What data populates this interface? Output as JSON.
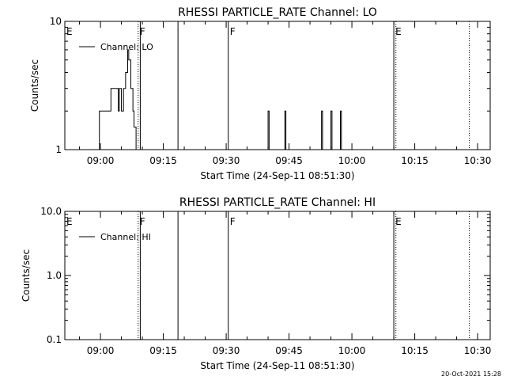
{
  "chart_data": [
    {
      "type": "line",
      "title": "RHESSI PARTICLE_RATE Channel: LO",
      "xlabel": "Start Time (24-Sep-11 08:51:30)",
      "ylabel": "Counts/sec",
      "yscale": "log",
      "ylim": [
        1,
        10
      ],
      "yticks": [
        "1",
        "10"
      ],
      "xlim": [
        "08:51:30",
        "10:33:00"
      ],
      "xticks": [
        "09:00",
        "09:15",
        "09:30",
        "09:45",
        "10:00",
        "10:15",
        "10:30"
      ],
      "legend": {
        "position": "top-left",
        "entries": [
          "Channel: LO"
        ]
      },
      "grid": false,
      "series": [
        {
          "name": "Channel: LO",
          "points": [
            [
              "08:59:30",
              1
            ],
            [
              "08:59:45",
              2
            ],
            [
              "09:02:15",
              2
            ],
            [
              "09:02:30",
              3
            ],
            [
              "09:04:00",
              3
            ],
            [
              "09:04:15",
              2
            ],
            [
              "09:04:30",
              3
            ],
            [
              "09:05:00",
              2
            ],
            [
              "09:05:30",
              3
            ],
            [
              "09:06:00",
              4
            ],
            [
              "09:06:30",
              6
            ],
            [
              "09:06:45",
              5
            ],
            [
              "09:07:15",
              3
            ],
            [
              "09:07:45",
              2
            ],
            [
              "09:08:00",
              1.5
            ],
            [
              "09:08:30",
              1
            ]
          ]
        },
        {
          "name": "Channel: LO",
          "points": [
            [
              "09:39:45",
              1
            ],
            [
              "09:40:00",
              2
            ],
            [
              "09:40:15",
              1
            ]
          ]
        },
        {
          "name": "Channel: LO",
          "points": [
            [
              "09:43:45",
              1
            ],
            [
              "09:44:00",
              2
            ],
            [
              "09:44:15",
              1
            ]
          ]
        },
        {
          "name": "Channel: LO",
          "points": [
            [
              "09:52:30",
              1
            ],
            [
              "09:52:45",
              2
            ],
            [
              "09:53:00",
              1
            ]
          ]
        },
        {
          "name": "Channel: LO",
          "points": [
            [
              "09:54:45",
              1
            ],
            [
              "09:55:00",
              2
            ],
            [
              "09:55:15",
              1
            ]
          ]
        },
        {
          "name": "Channel: LO",
          "points": [
            [
              "09:57:00",
              1
            ],
            [
              "09:57:15",
              2
            ],
            [
              "09:57:30",
              1
            ]
          ]
        }
      ],
      "markers": [
        {
          "time": "08:51:30",
          "label": "E",
          "style": "none"
        },
        {
          "time": "09:09:00",
          "label": "F",
          "style": "dotted"
        },
        {
          "time": "09:09:30",
          "label": "",
          "style": "solid"
        },
        {
          "time": "09:18:30",
          "label": "",
          "style": "solid"
        },
        {
          "time": "09:30:30",
          "label": "F",
          "style": "solid"
        },
        {
          "time": "10:10:00",
          "label": "E",
          "style": "solid"
        },
        {
          "time": "10:10:30",
          "label": "",
          "style": "dotted"
        },
        {
          "time": "10:28:00",
          "label": "",
          "style": "dotted"
        }
      ]
    },
    {
      "type": "line",
      "title": "RHESSI PARTICLE_RATE Channel: HI",
      "xlabel": "Start Time (24-Sep-11 08:51:30)",
      "ylabel": "Counts/sec",
      "yscale": "log",
      "ylim": [
        0.1,
        10
      ],
      "yticks": [
        "0.1",
        "1.0",
        "10.0"
      ],
      "xlim": [
        "08:51:30",
        "10:33:00"
      ],
      "xticks": [
        "09:00",
        "09:15",
        "09:30",
        "09:45",
        "10:00",
        "10:15",
        "10:30"
      ],
      "legend": {
        "position": "top-left",
        "entries": [
          "Channel: HI"
        ]
      },
      "grid": false,
      "series": [
        {
          "name": "Channel: HI",
          "points": []
        }
      ],
      "markers": [
        {
          "time": "08:51:30",
          "label": "E",
          "style": "none"
        },
        {
          "time": "09:09:00",
          "label": "F",
          "style": "dotted"
        },
        {
          "time": "09:09:30",
          "label": "",
          "style": "solid"
        },
        {
          "time": "09:18:30",
          "label": "",
          "style": "solid"
        },
        {
          "time": "09:30:30",
          "label": "F",
          "style": "solid"
        },
        {
          "time": "10:10:00",
          "label": "E",
          "style": "solid"
        },
        {
          "time": "10:10:30",
          "label": "",
          "style": "dotted"
        },
        {
          "time": "10:28:00",
          "label": "",
          "style": "dotted"
        }
      ]
    }
  ],
  "footer": {
    "timestamp": "20-Oct-2021 15:28"
  }
}
